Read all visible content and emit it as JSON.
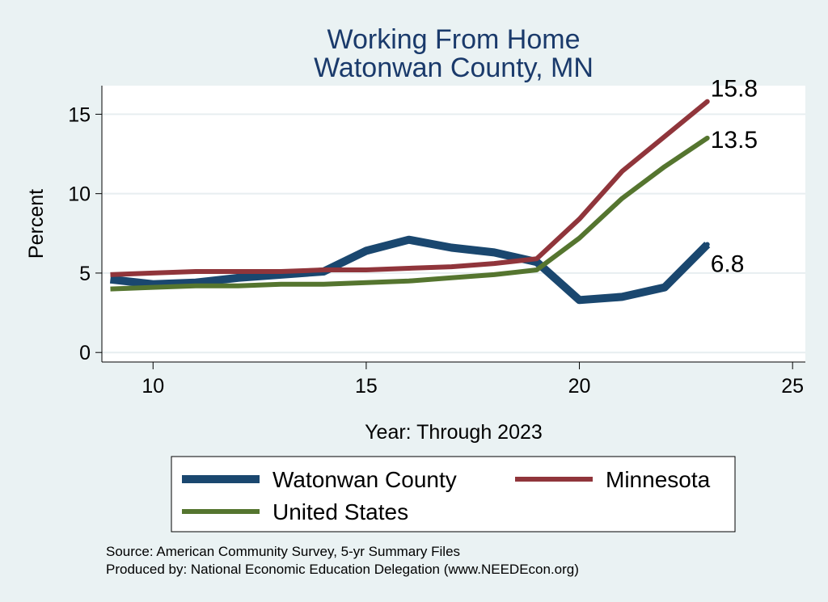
{
  "chart_data": {
    "type": "line",
    "title": [
      "Working From Home",
      "Watonwan County, MN"
    ],
    "xlabel": "Year: Through 2023",
    "ylabel": "Percent",
    "xlim": [
      8.8,
      25.3
    ],
    "ylim": [
      -0.6,
      16.8
    ],
    "xticks": [
      10,
      15,
      20,
      25
    ],
    "yticks": [
      0,
      5,
      10,
      15
    ],
    "grid": true,
    "legend_position": "bottom",
    "series": [
      {
        "name": "Watonwan County",
        "color": "#1a476f",
        "x": [
          9,
          10,
          11,
          12,
          13,
          14,
          15,
          16,
          17,
          18,
          19,
          20,
          21,
          22,
          23
        ],
        "values": [
          4.6,
          4.3,
          4.4,
          4.7,
          4.9,
          5.1,
          6.4,
          7.1,
          6.6,
          6.3,
          5.7,
          3.3,
          3.5,
          4.1,
          6.8
        ],
        "end_label": "6.8"
      },
      {
        "name": "Minnesota",
        "color": "#90353b",
        "x": [
          9,
          10,
          11,
          12,
          13,
          14,
          15,
          16,
          17,
          18,
          19,
          20,
          21,
          22,
          23
        ],
        "values": [
          4.9,
          5.0,
          5.1,
          5.1,
          5.1,
          5.2,
          5.2,
          5.3,
          5.4,
          5.6,
          5.9,
          8.4,
          11.4,
          13.6,
          15.8
        ],
        "end_label": "15.8"
      },
      {
        "name": "United States",
        "color": "#55752f",
        "x": [
          9,
          10,
          11,
          12,
          13,
          14,
          15,
          16,
          17,
          18,
          19,
          20,
          21,
          22,
          23
        ],
        "values": [
          4.0,
          4.1,
          4.2,
          4.2,
          4.3,
          4.3,
          4.4,
          4.5,
          4.7,
          4.9,
          5.2,
          7.2,
          9.7,
          11.7,
          13.5
        ],
        "end_label": "13.5"
      }
    ],
    "notes": [
      "Source: American Community Survey, 5-yr Summary Files",
      "Produced by: National Economic Education Delegation (www.NEEDEcon.org)"
    ]
  }
}
